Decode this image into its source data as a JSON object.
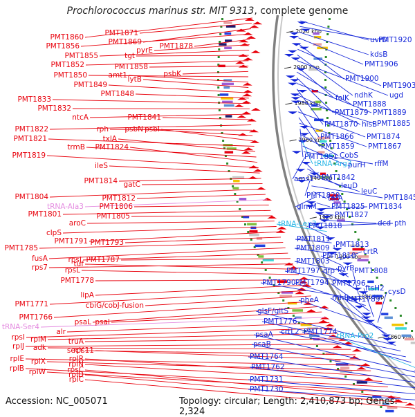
{
  "title": {
    "species": "Prochlorococcus marinus str. MIT 9313",
    "suffix": ", complete genome"
  },
  "footer": {
    "accession": "Accession: NC_005071",
    "summary": "Topology: circular; Length: 2,410,873 bp; Genes: 2,324"
  },
  "colors": {
    "left_gene": "#e8000b",
    "right_gene": "#1426d9",
    "rna": "#e48be0",
    "trna_right": "#22b4e6",
    "backbone": "#808080",
    "tick": "#2a8a2a"
  },
  "scale_marks": [
    "2020 kbp",
    "2000 kbp",
    "1980 kbp",
    "1960 kbp",
    "1940 kbp",
    "1920 kbp",
    "1900 kbp",
    "1880 kbp",
    "1860 kbp",
    "1840 kbp"
  ],
  "left_labels": [
    {
      "text": "PMT1860",
      "type": "gene"
    },
    {
      "text": "PMT1871",
      "type": "gene"
    },
    {
      "text": "PMT1869",
      "type": "gene"
    },
    {
      "text": "PMT1856",
      "type": "gene"
    },
    {
      "text": "PMT1878",
      "type": "gene"
    },
    {
      "text": "pyrE",
      "type": "gene"
    },
    {
      "text": "PMT1855",
      "type": "gene"
    },
    {
      "text": "tgt",
      "type": "gene"
    },
    {
      "text": "PMT1852",
      "type": "gene"
    },
    {
      "text": "PMT1858",
      "type": "gene"
    },
    {
      "text": "psbK",
      "type": "gene"
    },
    {
      "text": "PMT1850",
      "type": "gene"
    },
    {
      "text": "amt1",
      "type": "gene"
    },
    {
      "text": "lytB",
      "type": "gene"
    },
    {
      "text": "PMT1849",
      "type": "gene"
    },
    {
      "text": "PMT1848",
      "type": "gene"
    },
    {
      "text": "PMT1833",
      "type": "gene"
    },
    {
      "text": "PMT1832",
      "type": "gene"
    },
    {
      "text": "ntcA",
      "type": "gene"
    },
    {
      "text": "PMT1841",
      "type": "gene"
    },
    {
      "text": "PMT1822",
      "type": "gene"
    },
    {
      "text": "rph",
      "type": "gene"
    },
    {
      "text": "psbN",
      "type": "gene"
    },
    {
      "text": "psbI",
      "type": "gene"
    },
    {
      "text": "PMT1821",
      "type": "gene"
    },
    {
      "text": "txlA",
      "type": "gene"
    },
    {
      "text": "trmB",
      "type": "gene"
    },
    {
      "text": "PMT1824",
      "type": "gene"
    },
    {
      "text": "PMT1819",
      "type": "gene"
    },
    {
      "text": "ileS",
      "type": "gene"
    },
    {
      "text": "PMT1814",
      "type": "gene"
    },
    {
      "text": "gatC",
      "type": "gene"
    },
    {
      "text": "PMT1804",
      "type": "gene"
    },
    {
      "text": "PMT1812",
      "type": "gene"
    },
    {
      "text": "tRNA-Ala3",
      "type": "rna"
    },
    {
      "text": "PMT1806",
      "type": "gene"
    },
    {
      "text": "PMT1801",
      "type": "gene"
    },
    {
      "text": "PMT1805",
      "type": "gene"
    },
    {
      "text": "aroC",
      "type": "gene"
    },
    {
      "text": "clpS",
      "type": "gene"
    },
    {
      "text": "PMT1791",
      "type": "gene"
    },
    {
      "text": "PMT1793",
      "type": "gene"
    },
    {
      "text": "PMT1785",
      "type": "gene"
    },
    {
      "text": "fusA",
      "type": "gene"
    },
    {
      "text": "rpsJ",
      "type": "gene"
    },
    {
      "text": "PMT1787",
      "type": "gene"
    },
    {
      "text": "rps7",
      "type": "gene"
    },
    {
      "text": "tuf",
      "type": "gene"
    },
    {
      "text": "rpsL",
      "type": "gene"
    },
    {
      "text": "PMT1778",
      "type": "gene"
    },
    {
      "text": "lipA",
      "type": "gene"
    },
    {
      "text": "PMT1771",
      "type": "gene"
    },
    {
      "text": "cbiG/cobJ-fusion",
      "type": "gene"
    },
    {
      "text": "PMT1766",
      "type": "gene"
    },
    {
      "text": "psaL",
      "type": "gene"
    },
    {
      "text": "psaI",
      "type": "gene"
    },
    {
      "text": "tRNA-Ser4",
      "type": "rna"
    },
    {
      "text": "alr",
      "type": "gene"
    },
    {
      "text": "rpsI",
      "type": "gene"
    },
    {
      "text": "rplM",
      "type": "gene"
    },
    {
      "text": "truA",
      "type": "gene"
    },
    {
      "text": "rplJ",
      "type": "gene"
    },
    {
      "text": "adk",
      "type": "gene"
    },
    {
      "text": "secY",
      "type": "gene"
    },
    {
      "text": "rps11",
      "type": "gene"
    },
    {
      "text": "rplE",
      "type": "gene"
    },
    {
      "text": "rplX",
      "type": "gene"
    },
    {
      "text": "rplR",
      "type": "gene"
    },
    {
      "text": "rplN",
      "type": "gene"
    },
    {
      "text": "rplB",
      "type": "gene"
    },
    {
      "text": "rplW",
      "type": "gene"
    },
    {
      "text": "rpsC",
      "type": "gene"
    },
    {
      "text": "rplD",
      "type": "gene"
    },
    {
      "text": "rplC",
      "type": "gene"
    }
  ],
  "right_labels": [
    {
      "text": "uvrD",
      "type": "gene"
    },
    {
      "text": "PMT1920",
      "type": "gene"
    },
    {
      "text": "kdsB",
      "type": "gene"
    },
    {
      "text": "PMT1906",
      "type": "gene"
    },
    {
      "text": "PMT1900",
      "type": "gene"
    },
    {
      "text": "PMT1903",
      "type": "gene"
    },
    {
      "text": "ndhK",
      "type": "gene"
    },
    {
      "text": "ugd",
      "type": "gene"
    },
    {
      "text": "folK",
      "type": "gene"
    },
    {
      "text": "PMT1888",
      "type": "gene"
    },
    {
      "text": "PMT1879",
      "type": "gene"
    },
    {
      "text": "PMT1889",
      "type": "gene"
    },
    {
      "text": "PMT1870",
      "type": "gene"
    },
    {
      "text": "hisB",
      "type": "gene"
    },
    {
      "text": "PMT1885",
      "type": "gene"
    },
    {
      "text": "PMT1866",
      "type": "gene"
    },
    {
      "text": "PMT1874",
      "type": "gene"
    },
    {
      "text": "PMT1859",
      "type": "gene"
    },
    {
      "text": "PMT1867",
      "type": "gene"
    },
    {
      "text": "PMT1851",
      "type": "gene"
    },
    {
      "text": "CobS",
      "type": "gene"
    },
    {
      "text": "tRNA-Arg3",
      "type": "trna"
    },
    {
      "text": "purH",
      "type": "gene"
    },
    {
      "text": "rffM",
      "type": "gene"
    },
    {
      "text": "ams1",
      "type": "gene"
    },
    {
      "text": "PMT1842",
      "type": "gene"
    },
    {
      "text": "leuD",
      "type": "gene"
    },
    {
      "text": "leuC",
      "type": "gene"
    },
    {
      "text": "PMT1829",
      "type": "gene"
    },
    {
      "text": "PMT1845",
      "type": "gene"
    },
    {
      "text": "tatA",
      "type": "gene"
    },
    {
      "text": "glmM",
      "type": "gene"
    },
    {
      "text": "PMT1825",
      "type": "gene"
    },
    {
      "text": "PMT1834",
      "type": "gene"
    },
    {
      "text": "PMT1827",
      "type": "gene"
    },
    {
      "text": "dcd",
      "type": "gene"
    },
    {
      "text": "pth",
      "type": "gene"
    },
    {
      "text": "tRNA-Leu3",
      "type": "trna"
    },
    {
      "text": "PMT1818",
      "type": "gene"
    },
    {
      "text": "PMT1811",
      "type": "gene"
    },
    {
      "text": "PMT1813",
      "type": "gene"
    },
    {
      "text": "PMT1809",
      "type": "gene"
    },
    {
      "text": "crtR",
      "type": "gene"
    },
    {
      "text": "PMT1810",
      "type": "gene"
    },
    {
      "text": "PMT1803",
      "type": "gene"
    },
    {
      "text": "pyrB",
      "type": "gene"
    },
    {
      "text": "PMT1797",
      "type": "gene"
    },
    {
      "text": "dfp",
      "type": "gene"
    },
    {
      "text": "PMT1808",
      "type": "gene"
    },
    {
      "text": "PMT1790",
      "type": "gene"
    },
    {
      "text": "PMT1794",
      "type": "gene"
    },
    {
      "text": "PMT1796",
      "type": "gene"
    },
    {
      "text": "ftsH2",
      "type": "gene"
    },
    {
      "text": "cysD",
      "type": "gene"
    },
    {
      "text": "pheA",
      "type": "gene"
    },
    {
      "text": "rnhB",
      "type": "gene"
    },
    {
      "text": "PMT1789",
      "type": "gene"
    },
    {
      "text": "glsF/gltS",
      "type": "gene"
    },
    {
      "text": "PMT1776",
      "type": "gene"
    },
    {
      "text": "crtL2",
      "type": "gene"
    },
    {
      "text": "PMT1774",
      "type": "gene"
    },
    {
      "text": "tRNA-Pro2",
      "type": "trna"
    },
    {
      "text": "psaA",
      "type": "gene"
    },
    {
      "text": "psaB",
      "type": "gene"
    },
    {
      "text": "PMT1764",
      "type": "gene"
    },
    {
      "text": "PMT1762",
      "type": "gene"
    },
    {
      "text": "PMT1731",
      "type": "gene"
    },
    {
      "text": "PMT1730",
      "type": "gene"
    }
  ]
}
